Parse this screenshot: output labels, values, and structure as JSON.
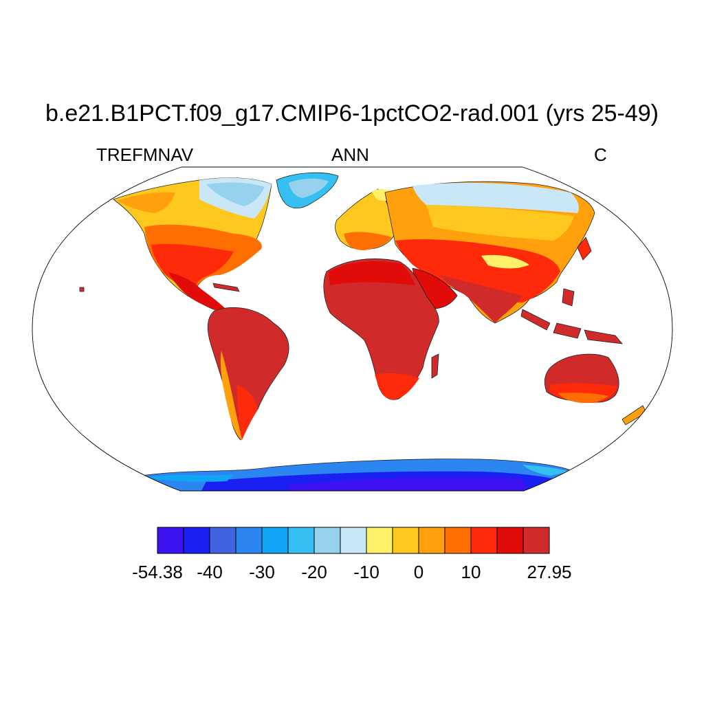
{
  "title": "b.e21.B1PCT.f09_g17.CMIP6-1pctCO2-rad.001 (yrs 25-49)",
  "left_string": "TREFMNAV",
  "center_string": "ANN",
  "right_string": "C",
  "map": {
    "projection": "Robinson",
    "variable": "TREFMNAV",
    "season": "ANN",
    "units": "C"
  },
  "colorbar": {
    "colors": [
      "#3d12f2",
      "#1a20f2",
      "#4064e0",
      "#2b86f2",
      "#10a6f5",
      "#36bff2",
      "#96d2ee",
      "#c9e7f7",
      "#fff06a",
      "#ffc81e",
      "#ffa00c",
      "#ff6e00",
      "#ff2a0a",
      "#e10c0a",
      "#d12a2a"
    ],
    "tick_labels": [
      {
        "text": "-54.38",
        "boundary_index": 0
      },
      {
        "text": "-40",
        "boundary_index": 2
      },
      {
        "text": "-30",
        "boundary_index": 4
      },
      {
        "text": "-20",
        "boundary_index": 6
      },
      {
        "text": "-10",
        "boundary_index": 8
      },
      {
        "text": "0",
        "boundary_index": 10
      },
      {
        "text": "10",
        "boundary_index": 12
      },
      {
        "text": "27.95",
        "boundary_index": 15
      }
    ]
  }
}
